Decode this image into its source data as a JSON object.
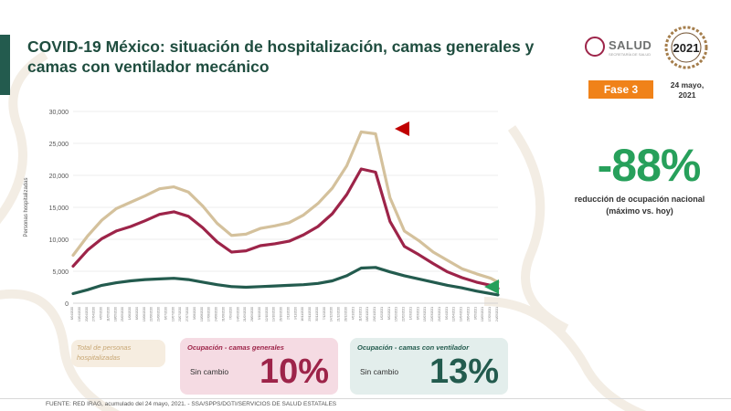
{
  "header": {
    "title": "COVID-19 México: situación de hospitalización, camas generales y camas con ventilador mecánico"
  },
  "logos": {
    "salud": "SALUD",
    "salud_sub": "SECRETARÍA DE SALUD",
    "year_2021": "2021"
  },
  "fase": {
    "label": "Fase 3",
    "color": "#f08219"
  },
  "date": {
    "line1": "24 mayo,",
    "line2": "2021"
  },
  "stat": {
    "value": "-88%",
    "description_line1": "reducción de ocupación nacional",
    "description_line2": "(máximo vs. hoy)",
    "color": "#27a05b"
  },
  "chart_data": {
    "type": "line",
    "ylabel": "Personas hospitalizadas",
    "ylim": [
      0,
      30000
    ],
    "yticks": [
      "0",
      "5,000",
      "10,000",
      "15,000",
      "20,000",
      "25,000",
      "30,000"
    ],
    "x_start": "2020-04-06",
    "x_end": "2021-05-24",
    "grid": true,
    "series": [
      {
        "name": "Total de personas hospitalizadas",
        "color": "#d4c19c",
        "dates": [
          "2020-04-06",
          "2020-04-20",
          "2020-05-04",
          "2020-05-18",
          "2020-06-01",
          "2020-06-15",
          "2020-06-29",
          "2020-07-13",
          "2020-07-27",
          "2020-08-10",
          "2020-08-24",
          "2020-09-07",
          "2020-09-21",
          "2020-10-05",
          "2020-10-19",
          "2020-11-02",
          "2020-11-16",
          "2020-11-30",
          "2020-12-14",
          "2020-12-28",
          "2021-01-11",
          "2021-01-25",
          "2021-02-08",
          "2021-02-22",
          "2021-03-08",
          "2021-03-22",
          "2021-04-05",
          "2021-04-19",
          "2021-05-03",
          "2021-05-17",
          "2021-05-24"
        ],
        "values": [
          7500,
          10500,
          13000,
          14800,
          15800,
          16800,
          17900,
          18200,
          17400,
          15200,
          12500,
          10600,
          10800,
          11700,
          12100,
          12600,
          13800,
          15600,
          18000,
          21500,
          26800,
          26500,
          16500,
          11300,
          9800,
          8000,
          6700,
          5400,
          4600,
          3900,
          3300
        ]
      },
      {
        "name": "Ocupación - camas generales",
        "color": "#9d2449",
        "dates": [
          "2020-04-06",
          "2020-04-20",
          "2020-05-04",
          "2020-05-18",
          "2020-06-01",
          "2020-06-15",
          "2020-06-29",
          "2020-07-13",
          "2020-07-27",
          "2020-08-10",
          "2020-08-24",
          "2020-09-07",
          "2020-09-21",
          "2020-10-05",
          "2020-10-19",
          "2020-11-02",
          "2020-11-16",
          "2020-11-30",
          "2020-12-14",
          "2020-12-28",
          "2021-01-11",
          "2021-01-25",
          "2021-02-08",
          "2021-02-22",
          "2021-03-08",
          "2021-03-22",
          "2021-04-05",
          "2021-04-19",
          "2021-05-03",
          "2021-05-17",
          "2021-05-24"
        ],
        "values": [
          5800,
          8300,
          10100,
          11300,
          12000,
          12900,
          13900,
          14300,
          13600,
          11800,
          9600,
          8000,
          8200,
          9000,
          9300,
          9700,
          10700,
          12000,
          14000,
          17000,
          21000,
          20500,
          12800,
          8900,
          7600,
          6200,
          4900,
          4000,
          3300,
          2800,
          2300
        ]
      },
      {
        "name": "Ocupación - camas con ventilador",
        "color": "#235b4e",
        "dates": [
          "2020-04-06",
          "2020-04-20",
          "2020-05-04",
          "2020-05-18",
          "2020-06-01",
          "2020-06-15",
          "2020-06-29",
          "2020-07-13",
          "2020-07-27",
          "2020-08-10",
          "2020-08-24",
          "2020-09-07",
          "2020-09-21",
          "2020-10-05",
          "2020-10-19",
          "2020-11-02",
          "2020-11-16",
          "2020-11-30",
          "2020-12-14",
          "2020-12-28",
          "2021-01-11",
          "2021-01-25",
          "2021-02-08",
          "2021-02-22",
          "2021-03-08",
          "2021-03-22",
          "2021-04-05",
          "2021-04-19",
          "2021-05-03",
          "2021-05-17",
          "2021-05-24"
        ],
        "values": [
          1500,
          2100,
          2800,
          3200,
          3500,
          3700,
          3800,
          3900,
          3700,
          3300,
          2900,
          2600,
          2500,
          2600,
          2700,
          2800,
          2900,
          3100,
          3500,
          4300,
          5500,
          5600,
          4900,
          4300,
          3800,
          3300,
          2800,
          2400,
          1900,
          1500,
          1300
        ]
      }
    ]
  },
  "cards": {
    "total": {
      "label_line1": "Total de personas",
      "label_line2": "hospitalizadas"
    },
    "general": {
      "label": "Ocupación - camas generales",
      "status": "Sin cambio",
      "value": "10%"
    },
    "ventilator": {
      "label": "Ocupación - camas con ventilador",
      "status": "Sin cambio",
      "value": "13%"
    }
  },
  "footer": {
    "source": "FUENTE: RED IRAG, acumulado del 24 mayo, 2021.  -  SSA/SPPS/DGTI/SERVICIOS DE SALUD ESTATALES"
  }
}
